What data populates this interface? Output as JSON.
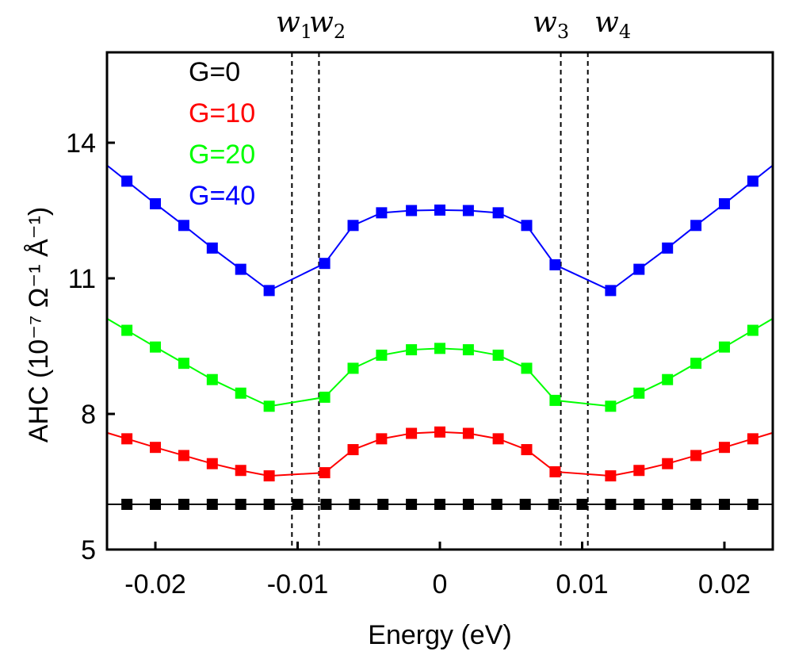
{
  "chart_data": {
    "type": "line",
    "xlabel": "Energy (eV)",
    "ylabel": "AHC (10⁻⁷ Ω⁻¹ Å⁻¹)",
    "xlim": [
      -0.0234,
      0.0234
    ],
    "ylim": [
      5,
      16
    ],
    "xticks": [
      -0.02,
      -0.01,
      0,
      0.01,
      0.02
    ],
    "xtick_labels": [
      "-0.02",
      "-0.01",
      "0",
      "0.01",
      "0.02"
    ],
    "yticks": [
      5,
      8,
      11,
      14
    ],
    "ytick_labels": [
      "5",
      "8",
      "11",
      "14"
    ],
    "grid": false,
    "legend_position": "top-left",
    "x": [
      -0.022,
      -0.02,
      -0.018,
      -0.016,
      -0.014,
      -0.012,
      -0.01,
      -0.008,
      -0.006,
      -0.004,
      -0.002,
      0,
      0.002,
      0.004,
      0.006,
      0.008,
      0.01,
      0.012,
      0.014,
      0.016,
      0.018,
      0.02,
      0.022
    ],
    "series": [
      {
        "name": "G=0",
        "color": "#000000",
        "x": [
          -0.022,
          -0.02,
          -0.018,
          -0.016,
          -0.014,
          -0.012,
          -0.01,
          -0.008,
          -0.006,
          -0.004,
          -0.002,
          0,
          0.002,
          0.004,
          0.006,
          0.008,
          0.01,
          0.012,
          0.014,
          0.016,
          0.018,
          0.02,
          0.022
        ],
        "values": [
          6.0,
          6.0,
          6.0,
          6.0,
          6.0,
          6.0,
          6.0,
          6.0,
          6.0,
          6.0,
          6.0,
          6.0,
          6.0,
          6.0,
          6.0,
          6.0,
          6.0,
          6.0,
          6.0,
          6.0,
          6.0,
          6.0,
          6.0
        ]
      },
      {
        "name": "G=10",
        "color": "#ff0000",
        "x": [
          -0.022,
          -0.02,
          -0.018,
          -0.016,
          -0.014,
          -0.012,
          -0.0081,
          -0.0061,
          -0.0041,
          -0.002,
          0,
          0.002,
          0.0041,
          0.0061,
          0.0081,
          0.012,
          0.014,
          0.016,
          0.018,
          0.02,
          0.022
        ],
        "values": [
          7.45,
          7.26,
          7.08,
          6.9,
          6.75,
          6.63,
          6.7,
          7.21,
          7.45,
          7.57,
          7.6,
          7.57,
          7.45,
          7.21,
          6.72,
          6.63,
          6.75,
          6.9,
          7.08,
          7.26,
          7.45
        ]
      },
      {
        "name": "G=20",
        "color": "#00ff00",
        "x": [
          -0.022,
          -0.02,
          -0.018,
          -0.016,
          -0.014,
          -0.012,
          -0.0081,
          -0.0061,
          -0.0041,
          -0.002,
          0,
          0.002,
          0.0041,
          0.0061,
          0.0081,
          0.012,
          0.014,
          0.016,
          0.018,
          0.02,
          0.022
        ],
        "values": [
          9.85,
          9.48,
          9.12,
          8.76,
          8.46,
          8.17,
          8.37,
          9.01,
          9.3,
          9.42,
          9.45,
          9.42,
          9.3,
          9.01,
          8.3,
          8.17,
          8.46,
          8.76,
          9.12,
          9.48,
          9.85
        ]
      },
      {
        "name": "G=40",
        "color": "#0000ff",
        "x": [
          -0.022,
          -0.02,
          -0.018,
          -0.016,
          -0.014,
          -0.012,
          -0.0081,
          -0.0061,
          -0.0041,
          -0.002,
          0,
          0.002,
          0.0041,
          0.0061,
          0.0081,
          0.012,
          0.014,
          0.016,
          0.018,
          0.02,
          0.022
        ],
        "values": [
          13.15,
          12.65,
          12.17,
          11.67,
          11.2,
          10.73,
          11.33,
          12.17,
          12.45,
          12.5,
          12.51,
          12.5,
          12.45,
          12.17,
          11.3,
          10.73,
          11.2,
          11.67,
          12.17,
          12.65,
          13.15
        ]
      }
    ],
    "vertical_markers": [
      {
        "label": "w",
        "sub": "1",
        "x": -0.0104
      },
      {
        "label": "w",
        "sub": "2",
        "x": -0.0085
      },
      {
        "label": "w",
        "sub": "3",
        "x": 0.0085
      },
      {
        "label": "w",
        "sub": "4",
        "x": 0.0104
      }
    ]
  }
}
